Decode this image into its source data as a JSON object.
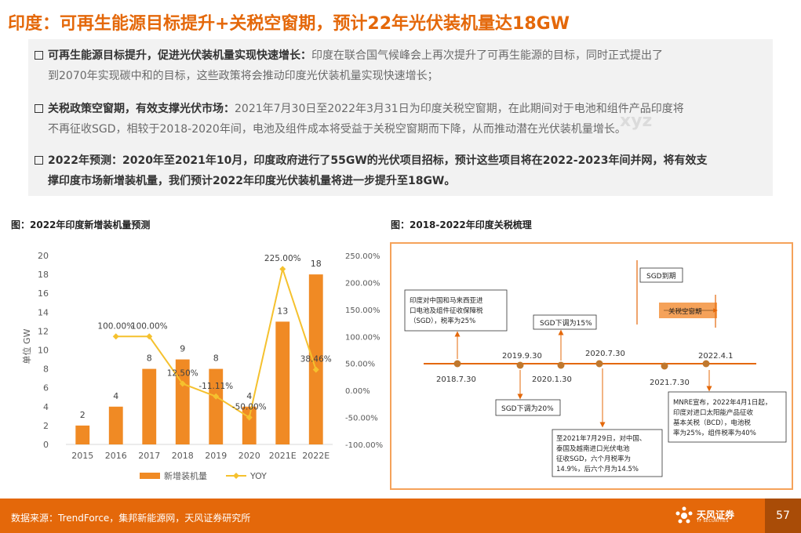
{
  "header": {
    "title": "印度：可再生能源目标提升+关税空窗期，预计22年光伏装机量达18GW"
  },
  "bullets": [
    {
      "head": "可再生能源目标提升，促进光伏装机量实现快速增长：",
      "line1": "印度在联合国气候峰会上再次提升了可再生能源的目标，同时正式提出了",
      "line2": "到2070年实现碳中和的目标，这些政策将会推动印度光伏装机量实现快速增长；"
    },
    {
      "head": "关税政策空窗期，有效支撑光伏市场：",
      "line1": "2021年7月30日至2022年3月31日为印度关税空窗期，在此期间对于电池和组件产品印度将",
      "line2": "不再征收SGD，相较于2018-2020年间，电池及组件成本将受益于关税空窗期而下降，从而推动潜在光伏装机量增长。"
    },
    {
      "line1": "2022年预测：2020年至2021年10月，印度政府进行了55GW的光伏项目招标，预计这些项目将在2022-2023年间并网，将有效支",
      "line2": "撑印度市场新增装机量，我们预计2022年印度光伏装机量将进一步提升至18GW。"
    }
  ],
  "watermark": "xyz",
  "figures": {
    "left_title": "图：2022年印度新增装机量预测",
    "right_title": "图：2018-2022年印度关税梳理"
  },
  "chart_data": {
    "type": "bar",
    "categories": [
      "2015",
      "2016",
      "2017",
      "2018",
      "2019",
      "2020",
      "2021E",
      "2022E"
    ],
    "series": [
      {
        "name": "新增装机量",
        "type": "bar",
        "values": [
          2,
          4,
          8,
          9,
          8,
          4,
          13,
          18
        ],
        "labels": [
          "2",
          "4",
          "8",
          "9",
          "8",
          "4",
          "13",
          "18"
        ],
        "color": "#f08a24"
      },
      {
        "name": "YOY",
        "type": "line",
        "axis": "right",
        "values": [
          null,
          100.0,
          100.0,
          12.5,
          -11.11,
          -50.0,
          225.0,
          38.46
        ],
        "labels": [
          "",
          "100.00%",
          "100.00%",
          "12.50%",
          "-11.11%",
          "-50.00%",
          "225.00%",
          "38.46%"
        ],
        "color": "#f5c12e"
      }
    ],
    "ylabel": "单位 GW",
    "ylim": [
      0,
      20
    ],
    "y_ticks": [
      "0",
      "2",
      "4",
      "6",
      "8",
      "10",
      "12",
      "14",
      "16",
      "18",
      "20"
    ],
    "y2lim": [
      -100,
      250
    ],
    "y2_ticks": [
      "-100.00%",
      "-50.00%",
      "0.00%",
      "50.00%",
      "100.00%",
      "150.00%",
      "200.00%",
      "250.00%"
    ],
    "legend_position": "bottom"
  },
  "timeline": {
    "dates": [
      "2018.7.30",
      "2019.9.30",
      "2020.1.30",
      "2020.7.30",
      "2021.7.30",
      "2022.4.1"
    ],
    "notes": {
      "n1": [
        "印度对中国和马来西亚进",
        "口电池及组件征收保障税",
        "（SGD），税率为25%"
      ],
      "n2": "SGD下调为15%",
      "n3": "SGD下调为20%",
      "n4": [
        "至2021年7月29日，对中国、",
        "泰国及越南进口光伏电池",
        "征收SGD，六个月税率为",
        "14.9%，后六个月为14.5%"
      ],
      "n5": "SGD到期",
      "n6": "关税空窗期",
      "n7": [
        "MNRE宣布，2022年4月1日起，",
        "印度对进口太阳能产品征收",
        "基本关税（BCD），电池税",
        "率为25%，组件税率为40%"
      ]
    }
  },
  "footer": {
    "source": "数据来源：TrendForce，集邦新能源网，天风证券研究所",
    "logo_text": "天风证券",
    "logo_sub": "TF SECURITIES",
    "page": "57"
  },
  "colors": {
    "accent": "#e4680a",
    "bar": "#f08a24",
    "line": "#f5c12e"
  }
}
